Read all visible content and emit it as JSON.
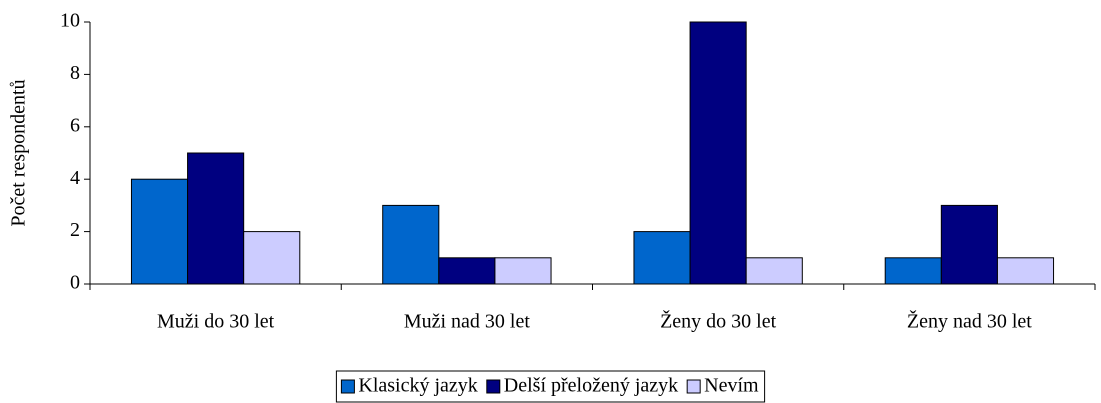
{
  "chart_data": {
    "type": "bar",
    "categories": [
      "Muži do 30 let",
      "Muži nad 30 let",
      "Ženy do 30 let",
      "Ženy nad 30 let"
    ],
    "series": [
      {
        "name": "Klasický jazyk",
        "color": "#0066cc",
        "values": [
          4,
          3,
          2,
          1
        ]
      },
      {
        "name": "Delší přeložený jazyk",
        "color": "#000080",
        "values": [
          5,
          1,
          10,
          3
        ]
      },
      {
        "name": "Nevím",
        "color": "#ccccff",
        "values": [
          2,
          1,
          1,
          1
        ]
      }
    ],
    "y_label": "Počet respondentů",
    "ylim": [
      0,
      10
    ],
    "yticks": [
      0,
      2,
      4,
      6,
      8,
      10
    ],
    "grid": false,
    "legend": "bottom"
  }
}
